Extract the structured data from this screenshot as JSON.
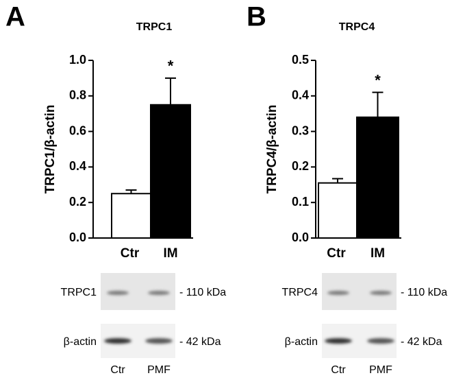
{
  "chart_data": [
    {
      "type": "bar",
      "panel": "A",
      "title": "TRPC1",
      "ylabel": "TRPC1/β-actin",
      "categories": [
        "Ctr",
        "IM"
      ],
      "values": [
        0.25,
        0.75
      ],
      "errors": [
        0.02,
        0.15
      ],
      "colors": [
        "#ffffff",
        "#000000"
      ],
      "significance_marks": [
        null,
        "*"
      ],
      "ylim": [
        0,
        1
      ],
      "yticks": [
        {
          "value": 0,
          "label": "0.0"
        },
        0.2,
        0.4,
        0.6,
        0.8,
        {
          "value": 1,
          "label": "1.0"
        }
      ],
      "blot": {
        "rows": [
          {
            "label": "TRPC1",
            "size": "- 110 kDa"
          },
          {
            "label": "β-actin",
            "size": "- 42 kDa"
          }
        ],
        "lanes": [
          "Ctr",
          "PMF"
        ]
      }
    },
    {
      "type": "bar",
      "panel": "B",
      "title": "TRPC4",
      "ylabel": "TRPC4/β-actin",
      "categories": [
        "Ctr",
        "IM"
      ],
      "values": [
        0.155,
        0.34
      ],
      "errors": [
        0.012,
        0.07
      ],
      "colors": [
        "#ffffff",
        "#000000"
      ],
      "significance_marks": [
        null,
        "*"
      ],
      "ylim": [
        0,
        0.5
      ],
      "yticks": [
        {
          "value": 0,
          "label": "0.0"
        },
        0.1,
        0.2,
        0.3,
        0.4,
        0.5
      ],
      "blot": {
        "rows": [
          {
            "label": "TRPC4",
            "size": "- 110 kDa"
          },
          {
            "label": "β-actin",
            "size": "- 42 kDa"
          }
        ],
        "lanes": [
          "Ctr",
          "PMF"
        ]
      }
    }
  ]
}
